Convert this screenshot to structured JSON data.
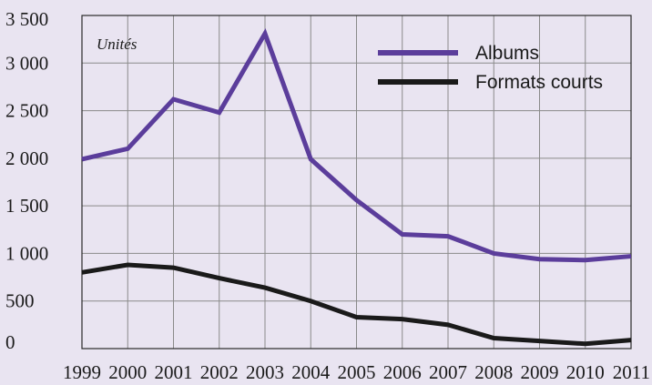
{
  "chart_data": {
    "type": "line",
    "unit_label": "Unités",
    "x": [
      "1999",
      "2000",
      "2001",
      "2002",
      "2003",
      "2004",
      "2005",
      "2006",
      "2007",
      "2008",
      "2009",
      "2010",
      "2011"
    ],
    "y_tick_labels": [
      "0",
      "500",
      "1 000",
      "1 500",
      "2 000",
      "2 500",
      "3 000",
      "3 500"
    ],
    "ylim": [
      0,
      3500
    ],
    "grid": true,
    "legend_position": "top-right",
    "series": [
      {
        "name": "Albums",
        "color": "#5b3d9b",
        "values": [
          1990,
          2100,
          2620,
          2480,
          3310,
          1990,
          1560,
          1200,
          1180,
          1000,
          940,
          930,
          970
        ]
      },
      {
        "name": "Formats courts",
        "color": "#1a1a1a",
        "values": [
          800,
          880,
          850,
          740,
          640,
          500,
          330,
          310,
          250,
          110,
          80,
          50,
          90
        ]
      }
    ]
  }
}
